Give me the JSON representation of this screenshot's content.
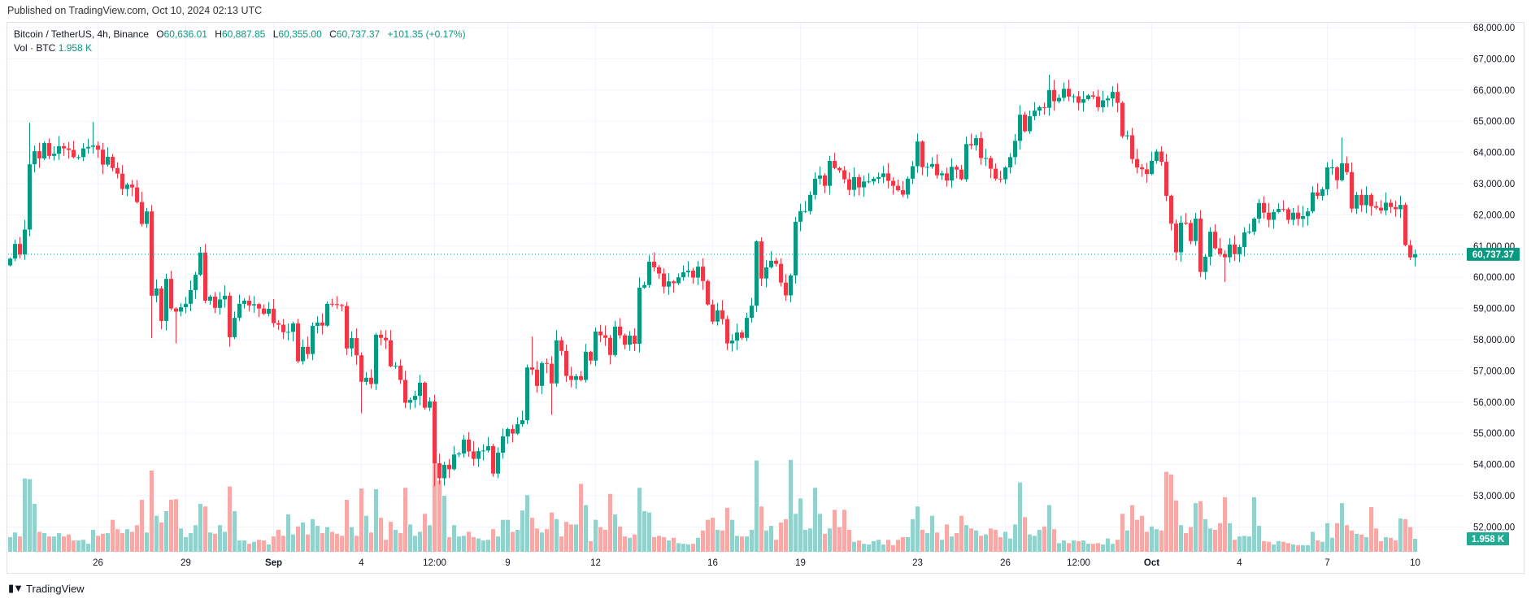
{
  "header": {
    "published": "Published on TradingView.com, Oct 10, 2024 02:13 UTC"
  },
  "legend": {
    "symbol": "Bitcoin / TetherUS, 4h, Binance",
    "open_label": "O",
    "open": "60,636.01",
    "high_label": "H",
    "high": "60,887.85",
    "low_label": "L",
    "low": "60,355.00",
    "close_label": "C",
    "close": "60,737.37",
    "change": "+101.35 (+0.17%)",
    "vol_label": "Vol · BTC",
    "vol_value": "1.958 K"
  },
  "price_axis": {
    "ticks": [
      "68,000.00",
      "67,000.00",
      "66,000.00",
      "65,000.00",
      "64,000.00",
      "63,000.00",
      "62,000.00",
      "61,000.00",
      "60,000.00",
      "59,000.00",
      "58,000.00",
      "57,000.00",
      "56,000.00",
      "55,000.00",
      "54,000.00",
      "53,000.00",
      "52,000.00"
    ],
    "last_price_label": "60,737.37",
    "last_volume_label": "1.958 K"
  },
  "footer": {
    "logo_mark": "TV",
    "brand": "TradingView"
  },
  "colors": {
    "up": "#089981",
    "down": "#f23645",
    "vol_up": "#92d2cc",
    "vol_down": "#f7a9a7",
    "grid": "#f0f3fa",
    "vol_label": "#22ab94"
  },
  "chart_data": {
    "type": "candlestick",
    "title": "Bitcoin / TetherUS, 4h, Binance",
    "ylim": [
      51500,
      68300
    ],
    "ytick_values": [
      68000,
      67000,
      66000,
      65000,
      64000,
      63000,
      62000,
      61000,
      60000,
      59000,
      58000,
      57000,
      56000,
      55000,
      54000,
      53000,
      52000
    ],
    "last_price": 60737.37,
    "first_open": 60380,
    "x_labels": [
      {
        "index": 18,
        "label": "26"
      },
      {
        "index": 36,
        "label": "29"
      },
      {
        "index": 54,
        "label": "Sep"
      },
      {
        "index": 72,
        "label": "4"
      },
      {
        "index": 87,
        "label": "12:00"
      },
      {
        "index": 102,
        "label": "9"
      },
      {
        "index": 120,
        "label": "12"
      },
      {
        "index": 144,
        "label": "16"
      },
      {
        "index": 162,
        "label": "19"
      },
      {
        "index": 186,
        "label": "23"
      },
      {
        "index": 204,
        "label": "26"
      },
      {
        "index": 219,
        "label": "12:00"
      },
      {
        "index": 234,
        "label": "Oct"
      },
      {
        "index": 252,
        "label": "4"
      },
      {
        "index": 270,
        "label": "7"
      },
      {
        "index": 288,
        "label": "10"
      }
    ],
    "closes": [
      60600,
      61070,
      60730,
      61530,
      63620,
      64040,
      63810,
      64300,
      63890,
      63960,
      64200,
      64130,
      64080,
      63850,
      63850,
      64130,
      64180,
      64220,
      64090,
      63610,
      63860,
      63500,
      63320,
      62830,
      62970,
      62880,
      62410,
      61710,
      62110,
      59410,
      59640,
      58600,
      59950,
      59000,
      58900,
      59040,
      59150,
      59590,
      60080,
      60790,
      59250,
      59380,
      59020,
      59290,
      59410,
      58080,
      58700,
      59150,
      59250,
      59100,
      59140,
      59000,
      58830,
      58990,
      58530,
      58480,
      58240,
      58250,
      58520,
      57310,
      57770,
      57540,
      58440,
      58550,
      58450,
      59150,
      59140,
      59110,
      59080,
      57720,
      58050,
      57500,
      56650,
      56780,
      56580,
      58160,
      58060,
      57980,
      57150,
      57170,
      56710,
      55980,
      56070,
      56200,
      56620,
      55820,
      56020,
      54040,
      53560,
      53990,
      53850,
      54320,
      54350,
      54800,
      54420,
      54180,
      54430,
      54450,
      54590,
      53710,
      54380,
      54900,
      55140,
      54990,
      55290,
      55420,
      57110,
      57040,
      56520,
      57250,
      57230,
      56600,
      57980,
      57640,
      56840,
      56710,
      56830,
      56710,
      57610,
      57330,
      58260,
      58140,
      58060,
      57510,
      58420,
      58140,
      57840,
      58130,
      57870,
      59670,
      59750,
      60500,
      60320,
      60120,
      59700,
      59870,
      59810,
      60000,
      60160,
      60210,
      59990,
      60340,
      59880,
      59130,
      58580,
      58940,
      58660,
      57880,
      57970,
      58230,
      58060,
      58700,
      59090,
      61150,
      59960,
      60320,
      60530,
      60430,
      59830,
      59420,
      60060,
      61780,
      62120,
      62120,
      62640,
      63160,
      63260,
      62930,
      63730,
      63500,
      63430,
      63140,
      62800,
      63210,
      62880,
      63070,
      63070,
      63160,
      63210,
      63330,
      63090,
      62930,
      62790,
      62650,
      63160,
      63560,
      64350,
      63530,
      63540,
      63630,
      63270,
      63330,
      63100,
      63540,
      63450,
      63140,
      64270,
      64230,
      64460,
      63820,
      63820,
      63480,
      63160,
      63140,
      63520,
      63850,
      64370,
      65210,
      64680,
      65160,
      65340,
      65450,
      65430,
      66000,
      65640,
      65750,
      66040,
      65790,
      65800,
      65590,
      65710,
      65830,
      65790,
      65450,
      65670,
      65730,
      65940,
      65590,
      64520,
      64550,
      63790,
      63520,
      63460,
      63310,
      63730,
      64030,
      63700,
      62610,
      61720,
      60800,
      61750,
      61740,
      61160,
      61880,
      60170,
      60660,
      61460,
      60930,
      60750,
      60640,
      61050,
      60740,
      60970,
      61440,
      61460,
      61880,
      62380,
      62070,
      61840,
      62090,
      62190,
      62180,
      61840,
      62070,
      61870,
      61960,
      62110,
      62720,
      62610,
      62820,
      63520,
      63520,
      63110,
      63650,
      63370,
      62200,
      62640,
      62310,
      62640,
      62280,
      62230,
      62140,
      62390,
      62250,
      62180,
      62320,
      61030,
      60636.01,
      60737.37
    ],
    "extremes": [
      [
        4,
        64950,
        null
      ],
      [
        17,
        64980,
        null
      ],
      [
        29,
        null,
        58050
      ],
      [
        34,
        null,
        57880
      ],
      [
        72,
        null,
        55640
      ],
      [
        87,
        null,
        53300
      ],
      [
        107,
        58100,
        null
      ],
      [
        111,
        null,
        55590
      ],
      [
        213,
        66490,
        null
      ],
      [
        244,
        null,
        60010
      ],
      [
        249,
        null,
        59850
      ],
      [
        273,
        64480,
        null
      ],
      [
        288,
        60887.85,
        60355
      ]
    ],
    "volume_unit": "K BTC",
    "volumes": [
      2.2,
      2.9,
      2.3,
      11.0,
      10.9,
      7.2,
      3.0,
      2.8,
      2.3,
      2.3,
      2.8,
      2.3,
      2.6,
      1.7,
      1.7,
      1.8,
      1.2,
      3.3,
      2.4,
      2.7,
      2.8,
      4.8,
      3.4,
      2.8,
      3.4,
      3.0,
      4.0,
      7.8,
      2.9,
      12.2,
      5.4,
      4.4,
      6.1,
      7.8,
      7.9,
      3.5,
      2.2,
      2.8,
      4.0,
      7.2,
      6.8,
      2.9,
      2.7,
      4.0,
      3.0,
      9.8,
      6.1,
      1.7,
      1.7,
      1.2,
      1.5,
      1.8,
      1.7,
      1.1,
      2.3,
      3.3,
      2.4,
      5.6,
      2.6,
      3.8,
      4.4,
      2.6,
      4.9,
      3.9,
      2.8,
      3.7,
      3.0,
      2.7,
      2.4,
      7.8,
      3.7,
      2.4,
      9.5,
      5.4,
      2.9,
      9.4,
      5.1,
      1.8,
      4.5,
      3.3,
      2.8,
      9.6,
      4.1,
      2.4,
      3.0,
      5.7,
      4.0,
      13.8,
      10.7,
      8.4,
      2.2,
      4.0,
      2.3,
      2.4,
      3.0,
      2.2,
      2.0,
      1.7,
      1.8,
      3.4,
      2.3,
      4.8,
      4.8,
      3.0,
      3.3,
      6.2,
      8.5,
      5.1,
      3.5,
      2.9,
      3.4,
      5.9,
      4.9,
      2.3,
      4.5,
      4.1,
      4.1,
      10.2,
      7.0,
      1.6,
      4.8,
      3.7,
      3.3,
      8.7,
      5.6,
      3.8,
      2.3,
      2.1,
      2.6,
      9.6,
      6.1,
      5.9,
      2.2,
      2.4,
      2.2,
      1.7,
      2.1,
      1.3,
      1.2,
      1.1,
      1.2,
      2.1,
      3.2,
      4.8,
      5.1,
      3.3,
      3.2,
      6.6,
      4.8,
      2.4,
      2.3,
      2.3,
      3.3,
      13.7,
      6.8,
      3.2,
      3.9,
      1.8,
      4.4,
      4.9,
      13.8,
      5.7,
      8.0,
      3.3,
      3.5,
      9.6,
      5.7,
      2.7,
      3.5,
      6.3,
      3.7,
      6.3,
      3.3,
      1.5,
      1.7,
      1.2,
      1.1,
      1.6,
      1.8,
      1.1,
      1.8,
      1.0,
      1.8,
      2.2,
      2.2,
      4.9,
      6.8,
      3.3,
      2.8,
      5.4,
      2.9,
      1.8,
      4.1,
      2.3,
      2.8,
      5.4,
      4.0,
      3.5,
      3.2,
      2.4,
      2.6,
      3.5,
      3.3,
      2.2,
      3.0,
      2.0,
      4.1,
      10.4,
      5.2,
      2.6,
      2.4,
      3.3,
      3.8,
      7.0,
      3.4,
      1.3,
      1.7,
      1.3,
      1.7,
      1.6,
      1.7,
      1.2,
      1.2,
      1.3,
      1.1,
      2.0,
      1.2,
      1.8,
      5.7,
      3.2,
      7.0,
      4.8,
      5.4,
      3.0,
      3.8,
      3.4,
      3.2,
      12.0,
      11.6,
      7.7,
      4.0,
      2.8,
      3.7,
      7.3,
      7.6,
      4.9,
      3.5,
      3.3,
      4.3,
      8.2,
      4.3,
      1.8,
      2.3,
      2.4,
      2.3,
      8.2,
      3.9,
      1.6,
      1.5,
      1.1,
      1.6,
      1.5,
      1.3,
      1.1,
      1.0,
      1.0,
      1.0,
      3.0,
      1.7,
      1.5,
      4.3,
      2.1,
      4.3,
      7.3,
      4.0,
      3.2,
      2.7,
      2.6,
      2.2,
      6.7,
      3.5,
      1.6,
      2.2,
      2.1,
      1.7,
      5.0,
      4.9,
      3.7,
      1.958
    ]
  }
}
